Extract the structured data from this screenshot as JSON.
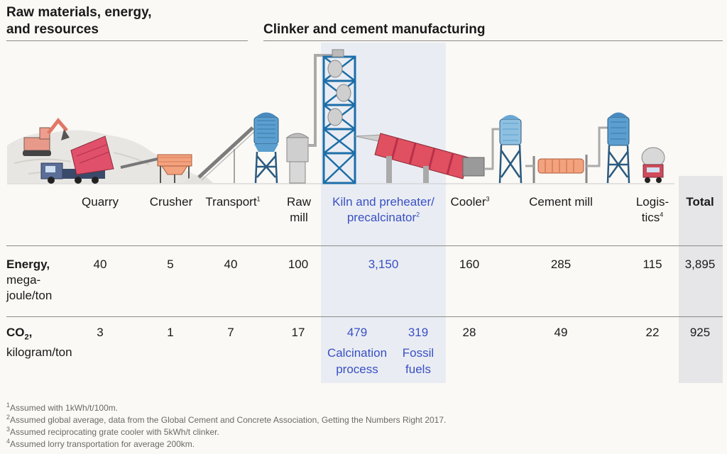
{
  "headers": {
    "left_line1": "Raw materials, energy,",
    "left_line2": "and resources",
    "right": "Clinker and cement manufacturing"
  },
  "stages": {
    "quarry": "Quarry",
    "crusher": "Crusher",
    "transport": "Transport",
    "transport_sup": "1",
    "raw_mill_1": "Raw",
    "raw_mill_2": "mill",
    "kiln_1": "Kiln and preheater/",
    "kiln_2": "precalcinator",
    "kiln_sup": "2",
    "cooler": "Cooler",
    "cooler_sup": "3",
    "cement_mill": "Cement mill",
    "logistics_1": "Logis-",
    "logistics_2": "tics",
    "logistics_sup": "4",
    "total": "Total"
  },
  "energy": {
    "label_bold": "Energy,",
    "label_line2": "mega-",
    "label_line3": "joule/ton",
    "quarry": "40",
    "crusher": "5",
    "transport": "40",
    "raw_mill": "100",
    "kiln": "3,150",
    "cooler": "160",
    "cement_mill": "285",
    "logistics": "115",
    "total": "3,895"
  },
  "co2": {
    "label_main": "CO",
    "label_sub": "2",
    "label_comma": ",",
    "label_line2": "kilogram/ton",
    "quarry": "3",
    "crusher": "1",
    "transport": "7",
    "raw_mill": "17",
    "calcination": "479",
    "fossil": "319",
    "calcination_label_1": "Calcination",
    "calcination_label_2": "process",
    "fossil_label_1": "Fossil",
    "fossil_label_2": "fuels",
    "cooler": "28",
    "cement_mill": "49",
    "logistics": "22",
    "total": "925"
  },
  "footnotes": {
    "n1": "1",
    "t1": "Assumed with 1kWh/t/100m.",
    "n2": "2",
    "t2": "Assumed global average, data from the Global Cement and Concrete Association, Getting the Numbers Right 2017.",
    "n3": "3",
    "t3": "Assumed reciprocating grate cooler with 5kWh/t clinker.",
    "n4": "4",
    "t4": "Assumed lorry transportation for average 200km."
  },
  "colors": {
    "accent_blue": "#3a4fc4",
    "kiln_red": "#e05060",
    "silo_blue": "#5a9fcf",
    "crusher_orange": "#f08a5a",
    "kiln_highlight": "#e9edf3",
    "total_highlight": "#e6e6e8"
  },
  "icons": [
    "excavator-icon",
    "dump-truck-icon",
    "crusher-icon",
    "conveyor-icon",
    "silo-icon",
    "raw-mill-icon",
    "preheater-tower-icon",
    "rotary-kiln-icon",
    "cooler-silo-icon",
    "cement-mill-icon",
    "cement-silo-icon",
    "tanker-truck-icon"
  ]
}
